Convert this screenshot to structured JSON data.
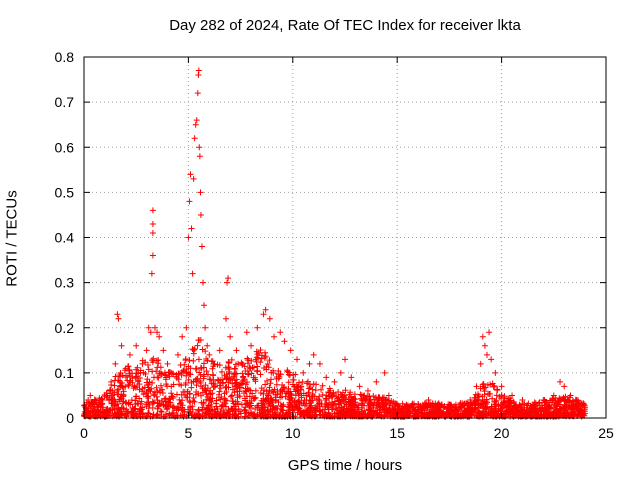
{
  "chart_data": {
    "type": "scatter",
    "title": "Day 282 of 2024, Rate Of TEC Index for receiver lkta",
    "xlabel": "GPS time / hours",
    "ylabel": "ROTI / TECUs",
    "xlim": [
      0,
      25
    ],
    "ylim": [
      0,
      0.8
    ],
    "xticks": [
      "0",
      "5",
      "10",
      "15",
      "20",
      "25"
    ],
    "yticks": [
      "0",
      "0.1",
      "0.2",
      "0.3",
      "0.4",
      "0.5",
      "0.6",
      "0.7",
      "0.8"
    ],
    "grid": true,
    "marker": "+",
    "color": "#ff0000",
    "series": [
      {
        "points": [
          [
            0.1,
            0.02
          ],
          [
            0.2,
            0.04
          ],
          [
            0.3,
            0.05
          ],
          [
            0.4,
            0.03
          ],
          [
            0.5,
            0.02
          ],
          [
            0.7,
            0.03
          ],
          [
            0.9,
            0.04
          ],
          [
            1.1,
            0.05
          ],
          [
            1.3,
            0.08
          ],
          [
            1.5,
            0.12
          ],
          [
            1.6,
            0.23
          ],
          [
            1.65,
            0.22
          ],
          [
            1.8,
            0.16
          ],
          [
            2.0,
            0.11
          ],
          [
            2.2,
            0.14
          ],
          [
            2.5,
            0.16
          ],
          [
            2.8,
            0.12
          ],
          [
            3.0,
            0.15
          ],
          [
            3.1,
            0.2
          ],
          [
            3.2,
            0.19
          ],
          [
            3.25,
            0.32
          ],
          [
            3.3,
            0.36
          ],
          [
            3.3,
            0.41
          ],
          [
            3.3,
            0.43
          ],
          [
            3.3,
            0.46
          ],
          [
            3.4,
            0.2
          ],
          [
            3.5,
            0.19
          ],
          [
            3.6,
            0.18
          ],
          [
            3.8,
            0.15
          ],
          [
            4.0,
            0.12
          ],
          [
            4.2,
            0.1
          ],
          [
            4.5,
            0.14
          ],
          [
            4.7,
            0.18
          ],
          [
            4.9,
            0.2
          ],
          [
            5.0,
            0.4
          ],
          [
            5.05,
            0.48
          ],
          [
            5.1,
            0.54
          ],
          [
            5.15,
            0.42
          ],
          [
            5.2,
            0.32
          ],
          [
            5.25,
            0.53
          ],
          [
            5.3,
            0.62
          ],
          [
            5.35,
            0.65
          ],
          [
            5.4,
            0.66
          ],
          [
            5.45,
            0.72
          ],
          [
            5.48,
            0.76
          ],
          [
            5.5,
            0.77
          ],
          [
            5.52,
            0.6
          ],
          [
            5.55,
            0.58
          ],
          [
            5.58,
            0.5
          ],
          [
            5.6,
            0.45
          ],
          [
            5.65,
            0.38
          ],
          [
            5.7,
            0.3
          ],
          [
            5.75,
            0.25
          ],
          [
            5.8,
            0.2
          ],
          [
            5.9,
            0.16
          ],
          [
            6.0,
            0.14
          ],
          [
            6.2,
            0.12
          ],
          [
            6.5,
            0.15
          ],
          [
            6.8,
            0.22
          ],
          [
            6.85,
            0.3
          ],
          [
            6.9,
            0.31
          ],
          [
            7.0,
            0.18
          ],
          [
            7.3,
            0.15
          ],
          [
            7.6,
            0.12
          ],
          [
            7.8,
            0.19
          ],
          [
            8.0,
            0.16
          ],
          [
            8.3,
            0.2
          ],
          [
            8.6,
            0.23
          ],
          [
            8.7,
            0.24
          ],
          [
            8.9,
            0.22
          ],
          [
            9.1,
            0.18
          ],
          [
            9.4,
            0.19
          ],
          [
            9.6,
            0.17
          ],
          [
            9.9,
            0.15
          ],
          [
            10.2,
            0.13
          ],
          [
            10.5,
            0.1
          ],
          [
            10.8,
            0.12
          ],
          [
            11.0,
            0.14
          ],
          [
            11.3,
            0.12
          ],
          [
            11.6,
            0.09
          ],
          [
            12.0,
            0.08
          ],
          [
            12.3,
            0.1
          ],
          [
            12.5,
            0.13
          ],
          [
            12.8,
            0.09
          ],
          [
            13.2,
            0.07
          ],
          [
            13.6,
            0.06
          ],
          [
            14.0,
            0.08
          ],
          [
            14.4,
            0.1
          ],
          [
            14.6,
            0.05
          ],
          [
            15.0,
            0.03
          ],
          [
            15.5,
            0.02
          ],
          [
            16.0,
            0.03
          ],
          [
            16.5,
            0.04
          ],
          [
            17.0,
            0.03
          ],
          [
            17.5,
            0.03
          ],
          [
            18.0,
            0.02
          ],
          [
            18.5,
            0.04
          ],
          [
            18.8,
            0.07
          ],
          [
            19.0,
            0.12
          ],
          [
            19.1,
            0.18
          ],
          [
            19.2,
            0.16
          ],
          [
            19.3,
            0.14
          ],
          [
            19.4,
            0.19
          ],
          [
            19.5,
            0.13
          ],
          [
            19.7,
            0.1
          ],
          [
            20.0,
            0.07
          ],
          [
            20.5,
            0.05
          ],
          [
            21.0,
            0.04
          ],
          [
            21.5,
            0.03
          ],
          [
            22.0,
            0.04
          ],
          [
            22.5,
            0.05
          ],
          [
            22.8,
            0.08
          ],
          [
            23.0,
            0.07
          ],
          [
            23.3,
            0.05
          ],
          [
            23.6,
            0.04
          ],
          [
            23.9,
            0.03
          ]
        ]
      }
    ],
    "envelope": {
      "x": [
        0,
        0.5,
        1,
        1.5,
        2,
        2.5,
        3,
        3.5,
        4,
        4.5,
        5,
        5.5,
        6,
        6.5,
        7,
        7.5,
        8,
        8.5,
        9,
        9.5,
        10,
        10.5,
        11,
        11.5,
        12,
        12.5,
        13,
        13.5,
        14,
        14.5,
        15,
        15.5,
        16,
        16.5,
        17,
        17.5,
        18,
        18.5,
        19,
        19.5,
        20,
        20.5,
        21,
        21.5,
        22,
        22.5,
        23,
        23.5,
        24
      ],
      "y": [
        0.03,
        0.04,
        0.05,
        0.09,
        0.11,
        0.12,
        0.13,
        0.13,
        0.1,
        0.11,
        0.14,
        0.18,
        0.13,
        0.12,
        0.13,
        0.12,
        0.14,
        0.15,
        0.13,
        0.12,
        0.1,
        0.08,
        0.08,
        0.07,
        0.06,
        0.06,
        0.05,
        0.05,
        0.05,
        0.04,
        0.03,
        0.03,
        0.03,
        0.03,
        0.03,
        0.03,
        0.03,
        0.03,
        0.07,
        0.08,
        0.05,
        0.04,
        0.03,
        0.03,
        0.04,
        0.04,
        0.05,
        0.04,
        0.03
      ]
    }
  }
}
